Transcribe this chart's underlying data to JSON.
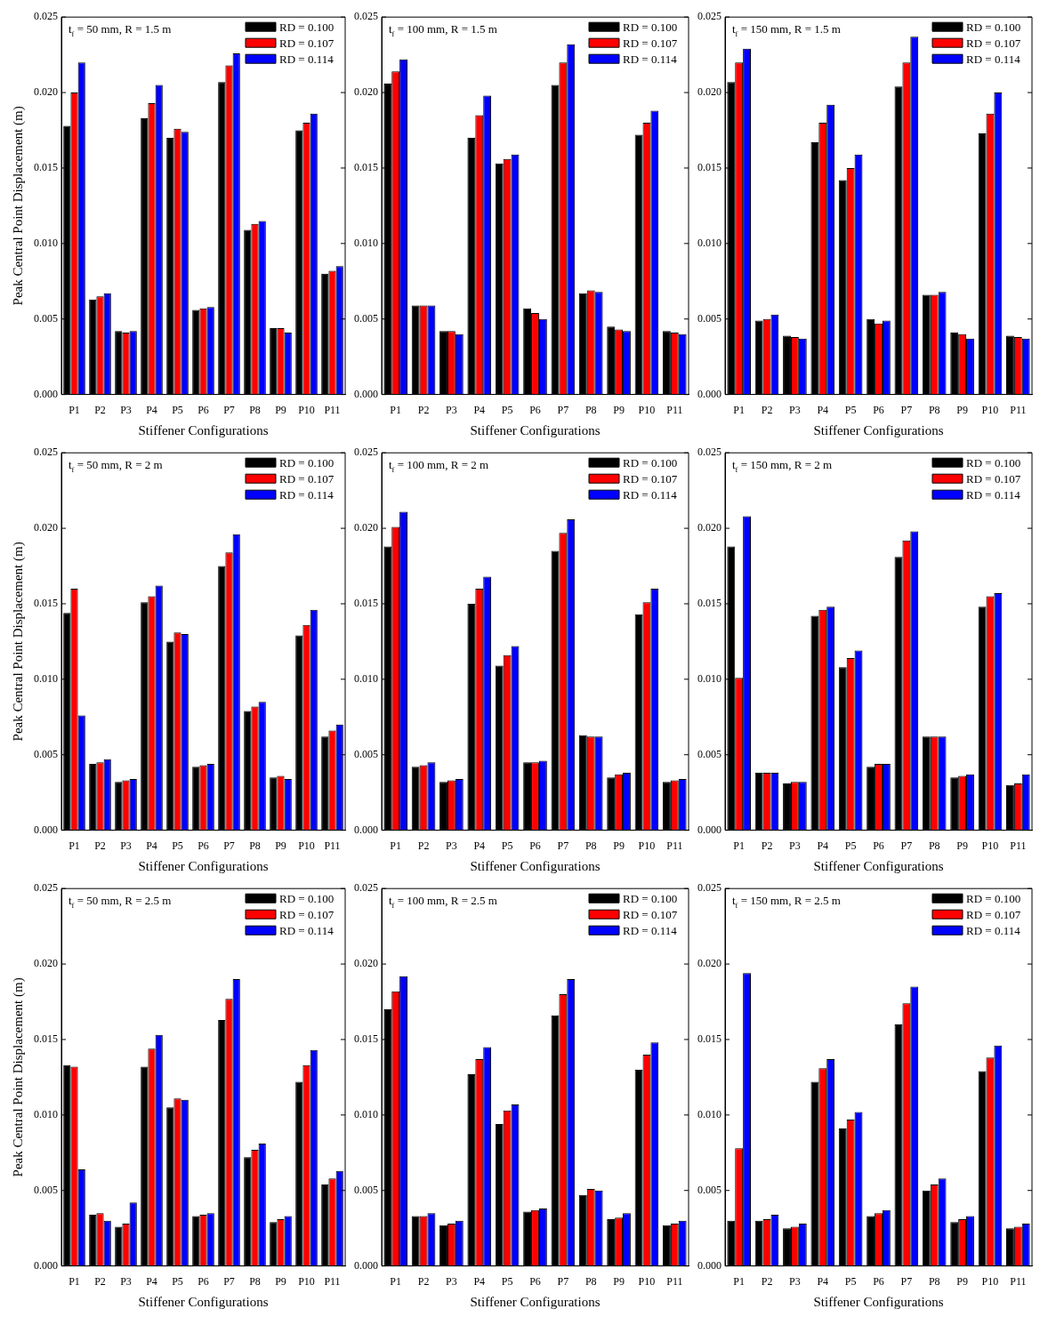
{
  "chart_data": [
    {
      "type": "bar",
      "title": "t$_{f}$ = 50 mm, R = 1.5 m",
      "xlabel": "Stiffener Configurations",
      "ylabel": "Peak Central Point Displacement (m)",
      "categories": [
        "P1",
        "P2",
        "P3",
        "P4",
        "P5",
        "P6",
        "P7",
        "P8",
        "P9",
        "P10",
        "P11"
      ],
      "ylim": [
        0,
        0.025
      ],
      "yticks": [
        {
          "value": 0,
          "label": "0.000"
        },
        {
          "value": 0.005,
          "label": "0.005"
        },
        {
          "value": 0.01,
          "label": "0.010"
        },
        {
          "value": 0.015,
          "label": "0.015"
        },
        {
          "value": 0.02,
          "label": "0.020"
        },
        {
          "value": 0.025,
          "label": "0.025"
        }
      ],
      "legend": "top right",
      "series": [
        {
          "name": "RD = 0.100",
          "color": "#000000",
          "values": [
            0.0178,
            0.0063,
            0.0042,
            0.0183,
            0.017,
            0.0056,
            0.0207,
            0.0109,
            0.0044,
            0.0175,
            0.008
          ]
        },
        {
          "name": "RD = 0.107",
          "color": "#ff0000",
          "values": [
            0.02,
            0.0065,
            0.0041,
            0.0193,
            0.0176,
            0.0057,
            0.0218,
            0.0113,
            0.0044,
            0.018,
            0.0082
          ]
        },
        {
          "name": "RD = 0.114",
          "color": "#0000ff",
          "values": [
            0.022,
            0.0067,
            0.0042,
            0.0205,
            0.0174,
            0.0058,
            0.0226,
            0.0115,
            0.0041,
            0.0186,
            0.0085
          ]
        }
      ]
    },
    {
      "type": "bar",
      "title": "t$_{f}$ = 100 mm, R = 1.5 m",
      "xlabel": "Stiffener Configurations",
      "categories": [
        "P1",
        "P2",
        "P3",
        "P4",
        "P5",
        "P6",
        "P7",
        "P8",
        "P9",
        "P10",
        "P11"
      ],
      "ylim": [
        0,
        0.025
      ],
      "yticks": [
        {
          "value": 0,
          "label": "0.000"
        },
        {
          "value": 0.005,
          "label": "0.005"
        },
        {
          "value": 0.01,
          "label": "0.010"
        },
        {
          "value": 0.015,
          "label": "0.015"
        },
        {
          "value": 0.02,
          "label": "0.020"
        },
        {
          "value": 0.025,
          "label": "0.025"
        }
      ],
      "legend": "top right",
      "series": [
        {
          "name": "RD = 0.100",
          "color": "#000000",
          "values": [
            0.0206,
            0.0059,
            0.0042,
            0.017,
            0.0153,
            0.0057,
            0.0205,
            0.0067,
            0.0045,
            0.0172,
            0.0042
          ]
        },
        {
          "name": "RD = 0.107",
          "color": "#ff0000",
          "values": [
            0.0214,
            0.0059,
            0.0042,
            0.0185,
            0.0156,
            0.0054,
            0.022,
            0.0069,
            0.0043,
            0.018,
            0.0041
          ]
        },
        {
          "name": "RD = 0.114",
          "color": "#0000ff",
          "values": [
            0.0222,
            0.0059,
            0.004,
            0.0198,
            0.0159,
            0.005,
            0.0232,
            0.0068,
            0.0042,
            0.0188,
            0.004
          ]
        }
      ]
    },
    {
      "type": "bar",
      "title": "t$_{f}$ = 150 mm, R = 1.5 m",
      "xlabel": "Stiffener Configurations",
      "categories": [
        "P1",
        "P2",
        "P3",
        "P4",
        "P5",
        "P6",
        "P7",
        "P8",
        "P9",
        "P10",
        "P11"
      ],
      "ylim": [
        0,
        0.025
      ],
      "yticks": [
        {
          "value": 0,
          "label": "0.000"
        },
        {
          "value": 0.005,
          "label": "0.005"
        },
        {
          "value": 0.01,
          "label": "0.010"
        },
        {
          "value": 0.015,
          "label": "0.015"
        },
        {
          "value": 0.02,
          "label": "0.020"
        },
        {
          "value": 0.025,
          "label": "0.025"
        }
      ],
      "legend": "top right",
      "series": [
        {
          "name": "RD = 0.100",
          "color": "#000000",
          "values": [
            0.0207,
            0.0049,
            0.0039,
            0.0167,
            0.0142,
            0.005,
            0.0204,
            0.0066,
            0.0041,
            0.0173,
            0.0039
          ]
        },
        {
          "name": "RD = 0.107",
          "color": "#ff0000",
          "values": [
            0.022,
            0.005,
            0.0038,
            0.018,
            0.015,
            0.0047,
            0.022,
            0.0066,
            0.004,
            0.0186,
            0.0038
          ]
        },
        {
          "name": "RD = 0.114",
          "color": "#0000ff",
          "values": [
            0.0229,
            0.0053,
            0.0037,
            0.0192,
            0.0159,
            0.0049,
            0.0237,
            0.0068,
            0.0037,
            0.02,
            0.0037
          ]
        }
      ]
    },
    {
      "type": "bar",
      "title": "t$_{f}$ = 50 mm, R = 2 m",
      "xlabel": "Stiffener Configurations",
      "ylabel": "Peak Central Point Displacement (m)",
      "categories": [
        "P1",
        "P2",
        "P3",
        "P4",
        "P5",
        "P6",
        "P7",
        "P8",
        "P9",
        "P10",
        "P11"
      ],
      "ylim": [
        0,
        0.025
      ],
      "yticks": [
        {
          "value": 0,
          "label": "0.000"
        },
        {
          "value": 0.005,
          "label": "0.005"
        },
        {
          "value": 0.01,
          "label": "0.010"
        },
        {
          "value": 0.015,
          "label": "0.015"
        },
        {
          "value": 0.02,
          "label": "0.020"
        },
        {
          "value": 0.025,
          "label": "0.025"
        }
      ],
      "legend": "top right",
      "series": [
        {
          "name": "RD = 0.100",
          "color": "#000000",
          "values": [
            0.0144,
            0.0044,
            0.0032,
            0.0151,
            0.0125,
            0.0042,
            0.0175,
            0.0079,
            0.0035,
            0.0129,
            0.0062
          ]
        },
        {
          "name": "RD = 0.107",
          "color": "#ff0000",
          "values": [
            0.016,
            0.0045,
            0.0033,
            0.0155,
            0.0131,
            0.0043,
            0.0184,
            0.0082,
            0.0036,
            0.0136,
            0.0066
          ]
        },
        {
          "name": "RD = 0.114",
          "color": "#0000ff",
          "values": [
            0.0076,
            0.0047,
            0.0034,
            0.0162,
            0.013,
            0.0044,
            0.0196,
            0.0085,
            0.0034,
            0.0146,
            0.007
          ]
        }
      ]
    },
    {
      "type": "bar",
      "title": "t$_{f}$ = 100 mm, R = 2 m",
      "xlabel": "Stiffener Configurations",
      "categories": [
        "P1",
        "P2",
        "P3",
        "P4",
        "P5",
        "P6",
        "P7",
        "P8",
        "P9",
        "P10",
        "P11"
      ],
      "ylim": [
        0,
        0.025
      ],
      "yticks": [
        {
          "value": 0,
          "label": "0.000"
        },
        {
          "value": 0.005,
          "label": "0.005"
        },
        {
          "value": 0.01,
          "label": "0.010"
        },
        {
          "value": 0.015,
          "label": "0.015"
        },
        {
          "value": 0.02,
          "label": "0.020"
        },
        {
          "value": 0.025,
          "label": "0.025"
        }
      ],
      "legend": "top right",
      "series": [
        {
          "name": "RD = 0.100",
          "color": "#000000",
          "values": [
            0.0188,
            0.0042,
            0.0032,
            0.015,
            0.0109,
            0.0045,
            0.0185,
            0.0063,
            0.0035,
            0.0143,
            0.0032
          ]
        },
        {
          "name": "RD = 0.107",
          "color": "#ff0000",
          "values": [
            0.0201,
            0.0043,
            0.0033,
            0.016,
            0.0116,
            0.0045,
            0.0197,
            0.0062,
            0.0037,
            0.0151,
            0.0033
          ]
        },
        {
          "name": "RD = 0.114",
          "color": "#0000ff",
          "values": [
            0.0211,
            0.0045,
            0.0034,
            0.0168,
            0.0122,
            0.0046,
            0.0206,
            0.0062,
            0.0038,
            0.016,
            0.0034
          ]
        }
      ]
    },
    {
      "type": "bar",
      "title": "t$_{f}$ = 150 mm, R = 2 m",
      "xlabel": "Stiffener Configurations",
      "categories": [
        "P1",
        "P2",
        "P3",
        "P4",
        "P5",
        "P6",
        "P7",
        "P8",
        "P9",
        "P10",
        "P11"
      ],
      "ylim": [
        0,
        0.025
      ],
      "yticks": [
        {
          "value": 0,
          "label": "0.000"
        },
        {
          "value": 0.005,
          "label": "0.005"
        },
        {
          "value": 0.01,
          "label": "0.010"
        },
        {
          "value": 0.015,
          "label": "0.015"
        },
        {
          "value": 0.02,
          "label": "0.020"
        },
        {
          "value": 0.025,
          "label": "0.025"
        }
      ],
      "legend": "top right",
      "series": [
        {
          "name": "RD = 0.100",
          "color": "#000000",
          "values": [
            0.0188,
            0.0038,
            0.0031,
            0.0142,
            0.0108,
            0.0042,
            0.0181,
            0.0062,
            0.0035,
            0.0148,
            0.003
          ]
        },
        {
          "name": "RD = 0.107",
          "color": "#ff0000",
          "values": [
            0.0101,
            0.0038,
            0.0032,
            0.0146,
            0.0114,
            0.0044,
            0.0192,
            0.0062,
            0.0036,
            0.0155,
            0.0031
          ]
        },
        {
          "name": "RD = 0.114",
          "color": "#0000ff",
          "values": [
            0.0208,
            0.0038,
            0.0032,
            0.0148,
            0.0119,
            0.0044,
            0.0198,
            0.0062,
            0.0037,
            0.0157,
            0.0037
          ]
        }
      ]
    },
    {
      "type": "bar",
      "title": "t$_{f}$ = 50 mm, R = 2.5 m",
      "xlabel": "Stiffener Configurations",
      "ylabel": "Peak Central Point Displacement (m)",
      "categories": [
        "P1",
        "P2",
        "P3",
        "P4",
        "P5",
        "P6",
        "P7",
        "P8",
        "P9",
        "P10",
        "P11"
      ],
      "ylim": [
        0,
        0.025
      ],
      "yticks": [
        {
          "value": 0,
          "label": "0.000"
        },
        {
          "value": 0.005,
          "label": "0.005"
        },
        {
          "value": 0.01,
          "label": "0.010"
        },
        {
          "value": 0.015,
          "label": "0.015"
        },
        {
          "value": 0.02,
          "label": "0.020"
        },
        {
          "value": 0.025,
          "label": "0.025"
        }
      ],
      "legend": "top right",
      "series": [
        {
          "name": "RD = 0.100",
          "color": "#000000",
          "values": [
            0.0133,
            0.0034,
            0.0026,
            0.0132,
            0.0105,
            0.0033,
            0.0163,
            0.0072,
            0.0029,
            0.0122,
            0.0054
          ]
        },
        {
          "name": "RD = 0.107",
          "color": "#ff0000",
          "values": [
            0.0132,
            0.0035,
            0.0028,
            0.0144,
            0.0111,
            0.0034,
            0.0177,
            0.0077,
            0.0031,
            0.0133,
            0.0058
          ]
        },
        {
          "name": "RD = 0.114",
          "color": "#0000ff",
          "values": [
            0.0064,
            0.003,
            0.0042,
            0.0153,
            0.011,
            0.0035,
            0.019,
            0.0081,
            0.0033,
            0.0143,
            0.0063
          ]
        }
      ]
    },
    {
      "type": "bar",
      "title": "t$_{f}$ = 100 mm, R = 2.5 m",
      "xlabel": "Stiffener Configurations",
      "categories": [
        "P1",
        "P2",
        "P3",
        "P4",
        "P5",
        "P6",
        "P7",
        "P8",
        "P9",
        "P10",
        "P11"
      ],
      "ylim": [
        0,
        0.025
      ],
      "yticks": [
        {
          "value": 0,
          "label": "0.000"
        },
        {
          "value": 0.005,
          "label": "0.005"
        },
        {
          "value": 0.01,
          "label": "0.010"
        },
        {
          "value": 0.015,
          "label": "0.015"
        },
        {
          "value": 0.02,
          "label": "0.020"
        },
        {
          "value": 0.025,
          "label": "0.025"
        }
      ],
      "legend": "top right",
      "series": [
        {
          "name": "RD = 0.100",
          "color": "#000000",
          "values": [
            0.017,
            0.0033,
            0.0027,
            0.0127,
            0.0094,
            0.0036,
            0.0166,
            0.0047,
            0.0031,
            0.013,
            0.0027
          ]
        },
        {
          "name": "RD = 0.107",
          "color": "#ff0000",
          "values": [
            0.0182,
            0.0033,
            0.0028,
            0.0137,
            0.0103,
            0.0037,
            0.018,
            0.0051,
            0.0032,
            0.014,
            0.0028
          ]
        },
        {
          "name": "RD = 0.114",
          "color": "#0000ff",
          "values": [
            0.0192,
            0.0035,
            0.003,
            0.0145,
            0.0107,
            0.0038,
            0.019,
            0.005,
            0.0035,
            0.0148,
            0.003
          ]
        }
      ]
    },
    {
      "type": "bar",
      "title": "t$_{f}$ = 150 mm, R = 2.5 m",
      "xlabel": "Stiffener Configurations",
      "categories": [
        "P1",
        "P2",
        "P3",
        "P4",
        "P5",
        "P6",
        "P7",
        "P8",
        "P9",
        "P10",
        "P11"
      ],
      "ylim": [
        0,
        0.025
      ],
      "yticks": [
        {
          "value": 0,
          "label": "0.000"
        },
        {
          "value": 0.005,
          "label": "0.005"
        },
        {
          "value": 0.01,
          "label": "0.010"
        },
        {
          "value": 0.015,
          "label": "0.015"
        },
        {
          "value": 0.02,
          "label": "0.020"
        },
        {
          "value": 0.025,
          "label": "0.025"
        }
      ],
      "legend": "top right",
      "series": [
        {
          "name": "RD = 0.100",
          "color": "#000000",
          "values": [
            0.003,
            0.003,
            0.0025,
            0.0122,
            0.0091,
            0.0033,
            0.016,
            0.005,
            0.0029,
            0.0129,
            0.0025
          ]
        },
        {
          "name": "RD = 0.107",
          "color": "#ff0000",
          "values": [
            0.0078,
            0.0031,
            0.0026,
            0.0131,
            0.0097,
            0.0035,
            0.0174,
            0.0054,
            0.0031,
            0.0138,
            0.0026
          ]
        },
        {
          "name": "RD = 0.114",
          "color": "#0000ff",
          "values": [
            0.0194,
            0.0034,
            0.0028,
            0.0137,
            0.0102,
            0.0037,
            0.0185,
            0.0058,
            0.0033,
            0.0146,
            0.0028
          ]
        }
      ]
    }
  ]
}
